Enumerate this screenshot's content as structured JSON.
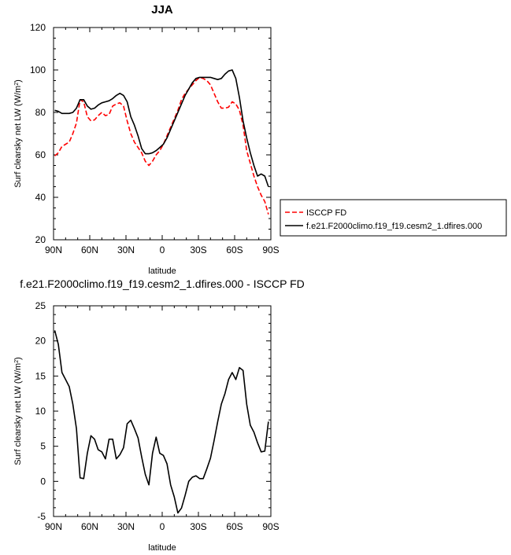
{
  "chart_data": [
    {
      "type": "line",
      "title": "JJA",
      "xlabel": "latitude",
      "ylabel": "Surf clearsky net LW (W/m",
      "ylabel_sup": "2",
      "ylabel_close": ")",
      "x_ticks": [
        {
          "value": -90,
          "label": "90N"
        },
        {
          "value": -60,
          "label": "60N"
        },
        {
          "value": -30,
          "label": "30N"
        },
        {
          "value": 0,
          "label": "0"
        },
        {
          "value": 30,
          "label": "30S"
        },
        {
          "value": 60,
          "label": "60S"
        },
        {
          "value": 90,
          "label": "90S"
        }
      ],
      "xlim": [
        -90,
        90
      ],
      "ylim": [
        20,
        120
      ],
      "y_ticks": [
        20,
        40,
        60,
        80,
        100,
        120
      ],
      "grid": false,
      "legend_position": "outside-right",
      "series": [
        {
          "name": "ISCCP FD",
          "color": "#ff0000",
          "dash": "dashed",
          "x": [
            -89,
            -86,
            -83,
            -80,
            -77,
            -74,
            -71,
            -68,
            -65,
            -62,
            -59,
            -56,
            -53,
            -50,
            -47,
            -44,
            -41,
            -38,
            -35,
            -32,
            -29,
            -26,
            -23,
            -20,
            -17,
            -14,
            -11,
            -8,
            -5,
            -2,
            1,
            4,
            7,
            10,
            13,
            16,
            19,
            22,
            25,
            28,
            31,
            34,
            37,
            40,
            43,
            46,
            49,
            52,
            55,
            58,
            61,
            64,
            67,
            70,
            73,
            76,
            79,
            82,
            85,
            88
          ],
          "values": [
            59.5,
            61,
            64,
            65,
            66,
            70,
            75,
            86,
            85,
            78,
            76,
            76.5,
            78.5,
            80,
            78.5,
            79,
            83,
            84,
            84.5,
            83,
            76,
            70,
            66,
            63.5,
            61,
            57,
            55,
            57,
            60,
            62,
            65,
            69,
            73,
            77,
            81,
            86,
            89,
            91,
            93,
            95,
            96.5,
            96,
            95,
            93,
            89,
            85,
            82,
            82,
            82.5,
            85,
            84,
            81,
            74,
            62,
            56,
            50,
            45,
            41,
            38,
            32
          ]
        },
        {
          "name": "f.e21.F2000climo.f19_f19.cesm2_1.dfires.000",
          "color": "#000000",
          "dash": "solid",
          "x": [
            -89,
            -86,
            -83,
            -80,
            -77,
            -74,
            -71,
            -68,
            -65,
            -62,
            -59,
            -56,
            -53,
            -50,
            -47,
            -44,
            -41,
            -38,
            -35,
            -32,
            -29,
            -26,
            -23,
            -20,
            -17,
            -14,
            -11,
            -8,
            -5,
            -2,
            1,
            4,
            7,
            10,
            13,
            16,
            19,
            22,
            25,
            28,
            31,
            34,
            37,
            40,
            43,
            46,
            49,
            52,
            55,
            58,
            61,
            64,
            67,
            70,
            73,
            76,
            79,
            82,
            85,
            88
          ],
          "values": [
            81,
            80.5,
            79.5,
            79.5,
            79.5,
            80,
            82,
            86,
            86,
            83,
            81.5,
            82,
            83.5,
            84.5,
            85,
            85.5,
            86.5,
            88,
            89,
            88,
            85,
            78,
            74,
            69,
            63,
            60.5,
            60.5,
            61,
            62,
            63.5,
            65,
            68,
            72,
            76,
            80,
            84,
            88,
            91,
            94,
            96,
            96.5,
            96.5,
            96.5,
            96.5,
            96,
            95.5,
            96,
            98,
            99.5,
            100,
            96,
            87,
            76,
            68,
            61,
            55,
            50,
            51,
            50,
            45
          ]
        }
      ]
    },
    {
      "type": "line",
      "title": "f.e21.F2000climo.f19_f19.cesm2_1.dfires.000 - ISCCP FD",
      "xlabel": "latitude",
      "ylabel": "Surf clearsky net LW (W/m",
      "ylabel_sup": "2",
      "ylabel_close": ")",
      "x_ticks": [
        {
          "value": -90,
          "label": "90N"
        },
        {
          "value": -60,
          "label": "60N"
        },
        {
          "value": -30,
          "label": "30N"
        },
        {
          "value": 0,
          "label": "0"
        },
        {
          "value": 30,
          "label": "30S"
        },
        {
          "value": 60,
          "label": "60S"
        },
        {
          "value": 90,
          "label": "90S"
        }
      ],
      "xlim": [
        -90,
        90
      ],
      "ylim": [
        -5,
        25
      ],
      "y_ticks": [
        -5,
        0,
        5,
        10,
        15,
        20,
        25
      ],
      "grid": false,
      "series": [
        {
          "color": "#000000",
          "dash": "solid",
          "x": [
            -89,
            -86,
            -83,
            -80,
            -77,
            -74,
            -71,
            -68,
            -65,
            -62,
            -59,
            -56,
            -53,
            -50,
            -47,
            -44,
            -41,
            -38,
            -35,
            -32,
            -29,
            -26,
            -23,
            -20,
            -17,
            -14,
            -11,
            -8,
            -5,
            -2,
            1,
            4,
            7,
            10,
            13,
            16,
            19,
            22,
            25,
            28,
            31,
            34,
            37,
            40,
            43,
            46,
            49,
            52,
            55,
            58,
            61,
            64,
            67,
            70,
            73,
            76,
            79,
            82,
            85,
            88
          ],
          "values": [
            21.5,
            19.5,
            15.5,
            14.5,
            13.5,
            11,
            7.5,
            0.5,
            0.4,
            4,
            6.5,
            6,
            4.5,
            4.2,
            3.2,
            6,
            6,
            3.2,
            3.8,
            4.8,
            8.2,
            8.7,
            7.5,
            6.2,
            3.5,
            1,
            -0.5,
            4,
            6.3,
            4,
            3.7,
            2.5,
            -0.5,
            -2.2,
            -4.5,
            -3.8,
            -2,
            0,
            0.6,
            0.8,
            0.4,
            0.4,
            1.8,
            3.3,
            5.8,
            8.5,
            11,
            12.5,
            14.5,
            15.5,
            14.5,
            16.2,
            15.8,
            11,
            8,
            7,
            5.5,
            4.2,
            4.3,
            8.5
          ]
        }
      ]
    }
  ]
}
